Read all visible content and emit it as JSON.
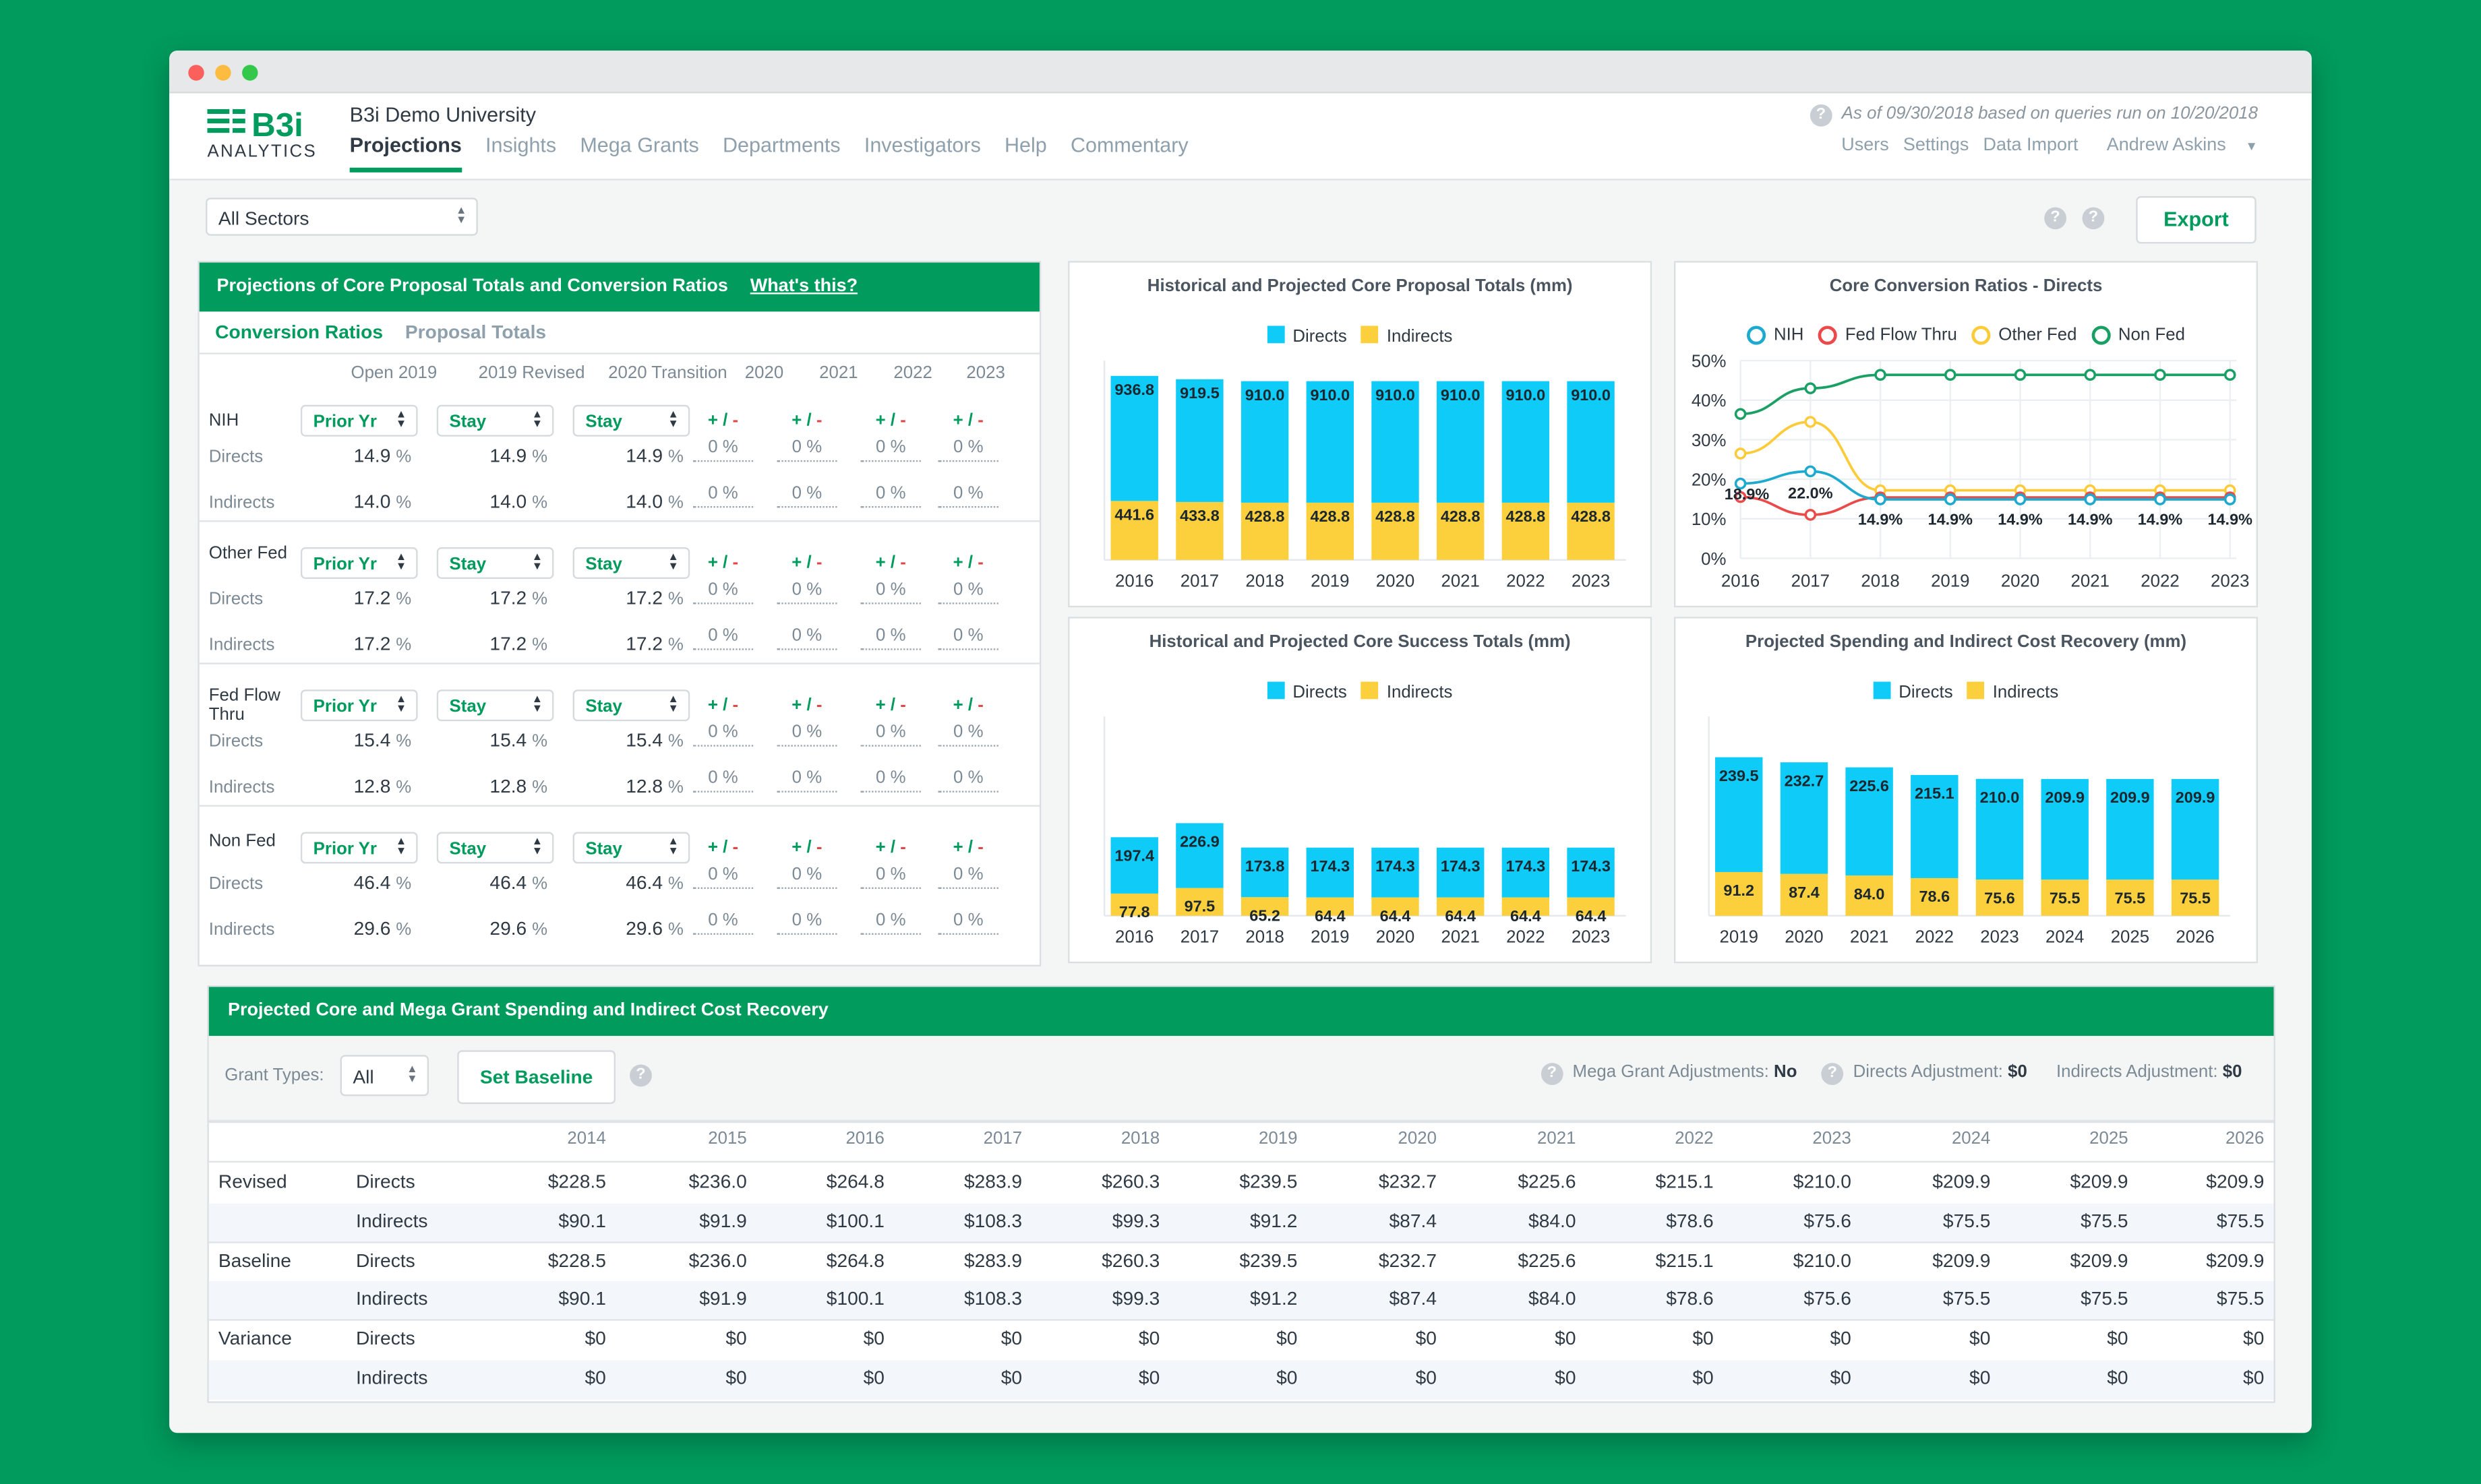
{
  "window": {
    "university": "B3i Demo University",
    "logo_text": "B3i",
    "logo_sub": "ANALYTICS"
  },
  "nav": [
    "Projections",
    "Insights",
    "Mega Grants",
    "Departments",
    "Investigators",
    "Help",
    "Commentary"
  ],
  "as_of": "As of 09/30/2018 based on queries run on 10/20/2018",
  "toplinks": [
    "Users",
    "Settings",
    "Data Import",
    "Andrew Askins"
  ],
  "sector_select": "All Sectors",
  "export_label": "Export",
  "projections_panel": {
    "title": "Projections of Core Proposal Totals and Conversion Ratios",
    "link": "What's this?",
    "tabs": [
      "Conversion Ratios",
      "Proposal Totals"
    ],
    "columns": [
      "Open 2019",
      "2019 Revised",
      "2020 Transition",
      "2020",
      "2021",
      "2022",
      "2023"
    ],
    "pm_label": "+ / -",
    "pct_value": "0 %",
    "groups": [
      {
        "name": "NIH",
        "selects": [
          "Prior Yr",
          "Stay",
          "Stay"
        ],
        "rows": [
          {
            "label": "Directs",
            "vals": [
              "14.9",
              "14.9",
              "14.9"
            ]
          },
          {
            "label": "Indirects",
            "vals": [
              "14.0",
              "14.0",
              "14.0"
            ]
          }
        ]
      },
      {
        "name": "Other Fed",
        "selects": [
          "Prior Yr",
          "Stay",
          "Stay"
        ],
        "rows": [
          {
            "label": "Directs",
            "vals": [
              "17.2",
              "17.2",
              "17.2"
            ]
          },
          {
            "label": "Indirects",
            "vals": [
              "17.2",
              "17.2",
              "17.2"
            ]
          }
        ]
      },
      {
        "name": "Fed Flow Thru",
        "selects": [
          "Prior Yr",
          "Stay",
          "Stay"
        ],
        "rows": [
          {
            "label": "Directs",
            "vals": [
              "15.4",
              "15.4",
              "15.4"
            ]
          },
          {
            "label": "Indirects",
            "vals": [
              "12.8",
              "12.8",
              "12.8"
            ]
          }
        ]
      },
      {
        "name": "Non Fed",
        "selects": [
          "Prior Yr",
          "Stay",
          "Stay"
        ],
        "rows": [
          {
            "label": "Directs",
            "vals": [
              "46.4",
              "46.4",
              "46.4"
            ]
          },
          {
            "label": "Indirects",
            "vals": [
              "29.6",
              "29.6",
              "29.6"
            ]
          }
        ]
      }
    ]
  },
  "chart_data": [
    {
      "type": "bar",
      "stacked": true,
      "title": "Historical and Projected Core Proposal Totals (mm)",
      "categories": [
        "2016",
        "2017",
        "2018",
        "2019",
        "2020",
        "2021",
        "2022",
        "2023"
      ],
      "series": [
        {
          "name": "Directs",
          "color": "#0ecbf7",
          "values": [
            936.8,
            919.5,
            910.0,
            910.0,
            910.0,
            910.0,
            910.0,
            910.0
          ]
        },
        {
          "name": "Indirects",
          "color": "#fbd03c",
          "values": [
            441.6,
            433.8,
            428.8,
            428.8,
            428.8,
            428.8,
            428.8,
            428.8
          ]
        }
      ]
    },
    {
      "type": "line",
      "title": "Core Conversion Ratios - Directs",
      "x": [
        "2016",
        "2017",
        "2018",
        "2019",
        "2020",
        "2021",
        "2022",
        "2023"
      ],
      "yticks": [
        "0%",
        "10%",
        "20%",
        "30%",
        "40%",
        "50%"
      ],
      "ylim": [
        0,
        50
      ],
      "labels": {
        "nih_2016": "18.9%",
        "nih_2017": "22.0%",
        "nih_proj": "14.9%"
      },
      "series": [
        {
          "name": "NIH",
          "color": "#1ea9cf",
          "values": [
            18.9,
            22.0,
            14.9,
            14.9,
            14.9,
            14.9,
            14.9,
            14.9
          ]
        },
        {
          "name": "Fed Flow Thru",
          "color": "#ea4a4a",
          "values": [
            15.5,
            11.0,
            15.4,
            15.4,
            15.4,
            15.4,
            15.4,
            15.4
          ]
        },
        {
          "name": "Other Fed",
          "color": "#fbcb3a",
          "values": [
            26.5,
            34.5,
            17.2,
            17.2,
            17.2,
            17.2,
            17.2,
            17.2
          ]
        },
        {
          "name": "Non Fed",
          "color": "#1aa064",
          "values": [
            36.5,
            43.0,
            46.4,
            46.4,
            46.4,
            46.4,
            46.4,
            46.4
          ]
        }
      ]
    },
    {
      "type": "bar",
      "stacked": true,
      "title": "Historical and Projected Core Success Totals (mm)",
      "categories": [
        "2016",
        "2017",
        "2018",
        "2019",
        "2020",
        "2021",
        "2022",
        "2023"
      ],
      "series": [
        {
          "name": "Directs",
          "color": "#0ecbf7",
          "values": [
            197.4,
            226.9,
            173.8,
            174.3,
            174.3,
            174.3,
            174.3,
            174.3
          ]
        },
        {
          "name": "Indirects",
          "color": "#fbd03c",
          "values": [
            77.8,
            97.5,
            65.2,
            64.4,
            64.4,
            64.4,
            64.4,
            64.4
          ]
        }
      ]
    },
    {
      "type": "bar",
      "stacked": true,
      "title": "Projected Spending and Indirect Cost Recovery (mm)",
      "categories": [
        "2019",
        "2020",
        "2021",
        "2022",
        "2023",
        "2024",
        "2025",
        "2026"
      ],
      "series": [
        {
          "name": "Directs",
          "color": "#0ecbf7",
          "values": [
            239.5,
            232.7,
            225.6,
            215.1,
            210.0,
            209.9,
            209.9,
            209.9
          ]
        },
        {
          "name": "Indirects",
          "color": "#fbd03c",
          "values": [
            91.2,
            87.4,
            84.0,
            78.6,
            75.6,
            75.5,
            75.5,
            75.5
          ]
        }
      ]
    }
  ],
  "spending_panel": {
    "title": "Projected Core and Mega Grant Spending and Indirect Cost Recovery",
    "grant_types_label": "Grant Types:",
    "grant_types_value": "All",
    "baseline_button": "Set Baseline",
    "mega_adj_label": "Mega Grant Adjustments:",
    "mega_adj_value": "No",
    "directs_adj_label": "Directs Adjustment:",
    "directs_adj_value": "$0",
    "indirects_adj_label": "Indirects Adjustment:",
    "indirects_adj_value": "$0",
    "years": [
      "2014",
      "2015",
      "2016",
      "2017",
      "2018",
      "2019",
      "2020",
      "2021",
      "2022",
      "2023",
      "2024",
      "2025",
      "2026"
    ],
    "rows": [
      {
        "group": "Revised",
        "type": "Directs",
        "vals": [
          "$228.5",
          "$236.0",
          "$264.8",
          "$283.9",
          "$260.3",
          "$239.5",
          "$232.7",
          "$225.6",
          "$215.1",
          "$210.0",
          "$209.9",
          "$209.9",
          "$209.9"
        ]
      },
      {
        "group": "",
        "type": "Indirects",
        "vals": [
          "$90.1",
          "$91.9",
          "$100.1",
          "$108.3",
          "$99.3",
          "$91.2",
          "$87.4",
          "$84.0",
          "$78.6",
          "$75.6",
          "$75.5",
          "$75.5",
          "$75.5"
        ]
      },
      {
        "group": "Baseline",
        "type": "Directs",
        "vals": [
          "$228.5",
          "$236.0",
          "$264.8",
          "$283.9",
          "$260.3",
          "$239.5",
          "$232.7",
          "$225.6",
          "$215.1",
          "$210.0",
          "$209.9",
          "$209.9",
          "$209.9"
        ]
      },
      {
        "group": "",
        "type": "Indirects",
        "vals": [
          "$90.1",
          "$91.9",
          "$100.1",
          "$108.3",
          "$99.3",
          "$91.2",
          "$87.4",
          "$84.0",
          "$78.6",
          "$75.6",
          "$75.5",
          "$75.5",
          "$75.5"
        ]
      },
      {
        "group": "Variance",
        "type": "Directs",
        "vals": [
          "$0",
          "$0",
          "$0",
          "$0",
          "$0",
          "$0",
          "$0",
          "$0",
          "$0",
          "$0",
          "$0",
          "$0",
          "$0"
        ]
      },
      {
        "group": "",
        "type": "Indirects",
        "vals": [
          "$0",
          "$0",
          "$0",
          "$0",
          "$0",
          "$0",
          "$0",
          "$0",
          "$0",
          "$0",
          "$0",
          "$0",
          "$0"
        ]
      }
    ]
  }
}
